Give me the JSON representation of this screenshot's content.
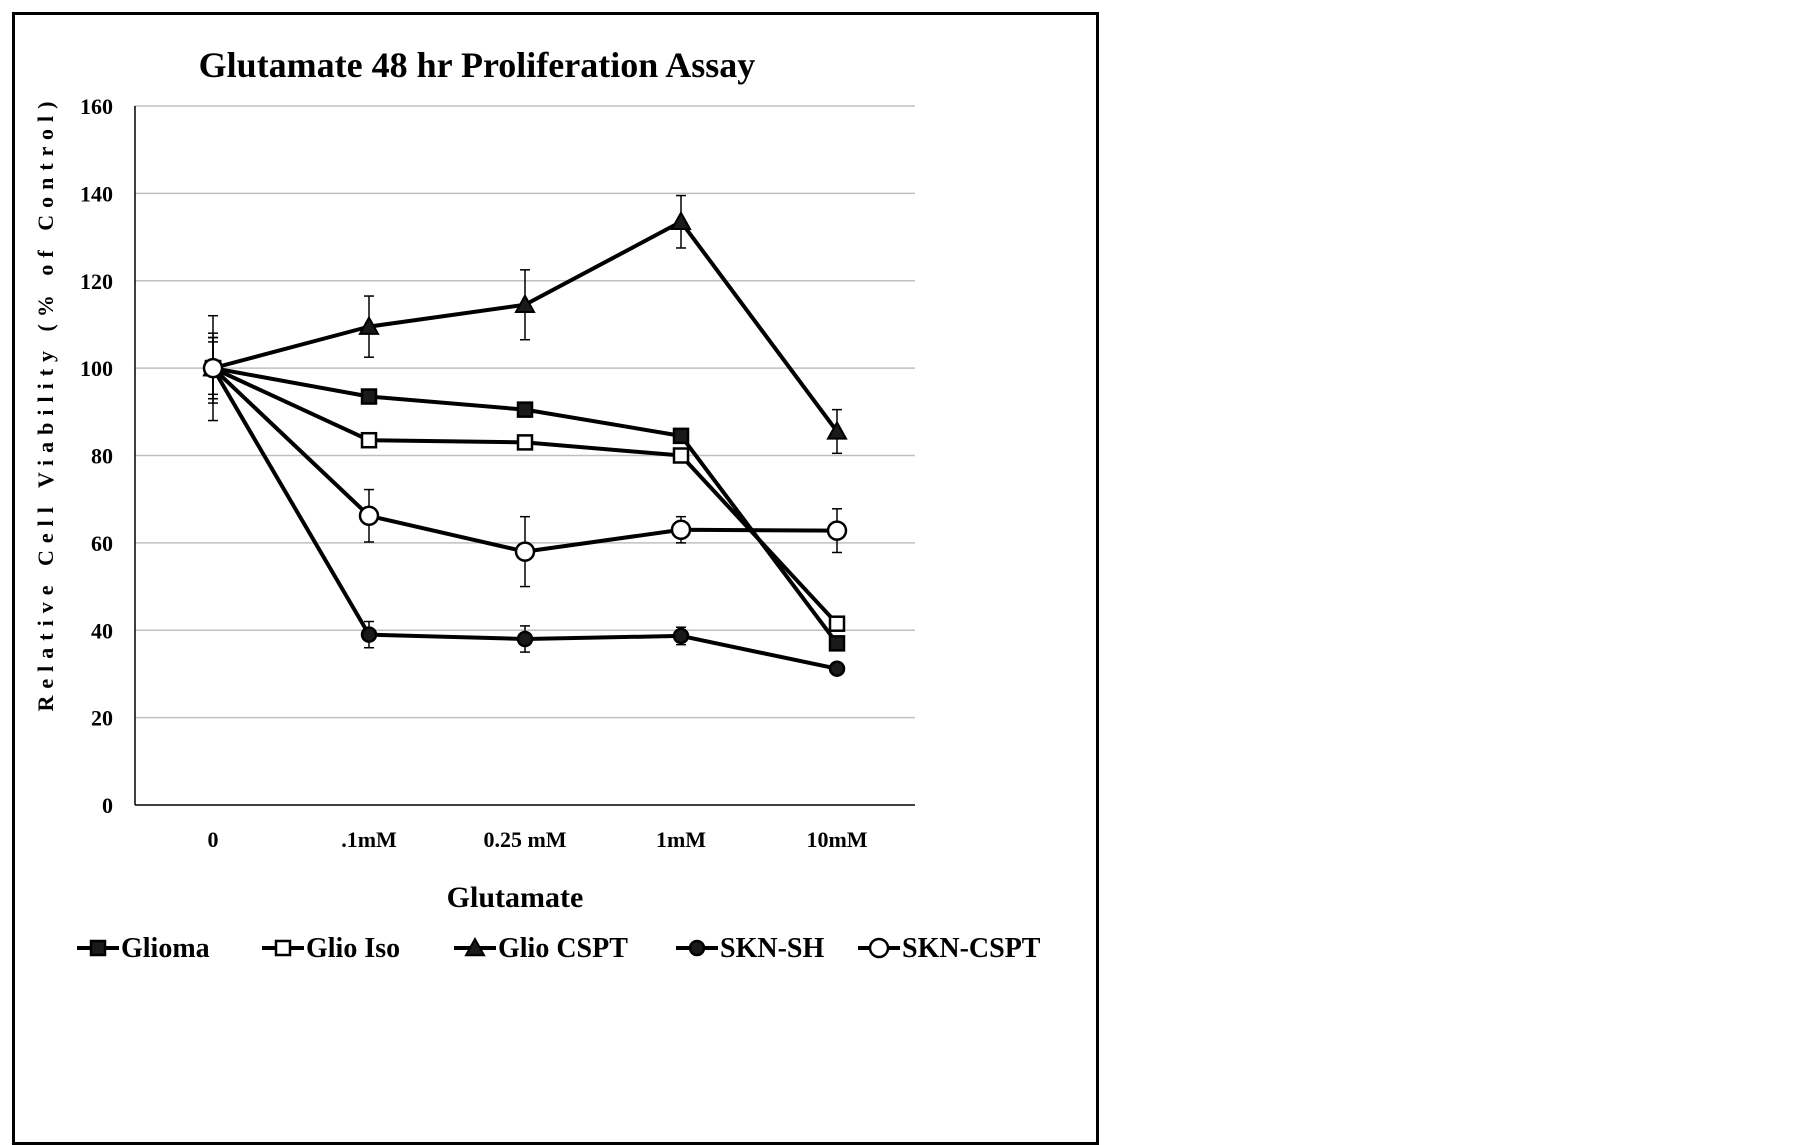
{
  "chart_data": {
    "type": "line",
    "title": "Glutamate 48 hr Proliferation Assay",
    "xlabel": "Glutamate",
    "ylabel": "Relative Cell Viability (% of Control)",
    "categories": [
      "0",
      ".1mM",
      "0.25 mM",
      "1mM",
      "10mM"
    ],
    "ylim": [
      0,
      160
    ],
    "yticks": [
      0,
      20,
      40,
      60,
      80,
      100,
      120,
      140,
      160
    ],
    "grid": true,
    "legend_position": "bottom",
    "series": [
      {
        "name": "Glioma",
        "marker": "square-filled",
        "values": [
          100,
          93.5,
          90.5,
          84.5,
          37
        ],
        "errors": [
          6,
          0,
          0,
          0,
          0
        ]
      },
      {
        "name": "Glio Iso",
        "marker": "square-open",
        "values": [
          100,
          83.5,
          83,
          80,
          41.5
        ],
        "errors": [
          8,
          0,
          0,
          0,
          0
        ]
      },
      {
        "name": "Glio CSPT",
        "marker": "triangle-filled",
        "values": [
          100,
          109.5,
          114.5,
          133.5,
          85.5
        ],
        "errors": [
          12,
          7,
          8,
          6,
          5
        ]
      },
      {
        "name": "SKN-SH",
        "marker": "circle-filled",
        "values": [
          100,
          39,
          38,
          38.7,
          31.2
        ],
        "errors": [
          7,
          3,
          3,
          2,
          0
        ]
      },
      {
        "name": "SKN-CSPT",
        "marker": "circle-open",
        "values": [
          100,
          66.2,
          58,
          63,
          62.8
        ],
        "errors": [
          7,
          6,
          8,
          3,
          5
        ]
      }
    ],
    "colors": {
      "line": "#000000",
      "grid": "#bfbfbf",
      "marker_open_fill": "#ffffff",
      "marker_fill": "#1a1a1a"
    }
  }
}
